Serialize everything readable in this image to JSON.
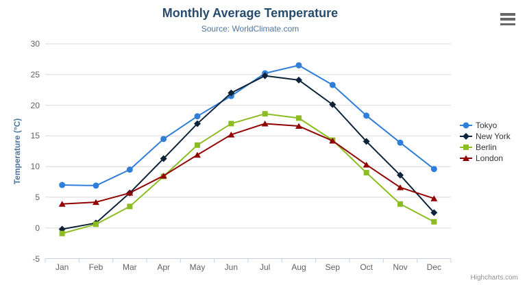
{
  "chart": {
    "title": "Monthly Average Temperature",
    "subtitle": "Source: WorldClimate.com",
    "credits": "Highcharts.com"
  },
  "chart_data": {
    "type": "line",
    "title": "Monthly Average Temperature",
    "subtitle": "Source: WorldClimate.com",
    "categories": [
      "Jan",
      "Feb",
      "Mar",
      "Apr",
      "May",
      "Jun",
      "Jul",
      "Aug",
      "Sep",
      "Oct",
      "Nov",
      "Dec"
    ],
    "xlabel": "",
    "ylabel": "Temperature (°C)",
    "ylim": [
      -5,
      30
    ],
    "yticks": [
      -5,
      0,
      5,
      10,
      15,
      20,
      25,
      30
    ],
    "grid": true,
    "legend_position": "right-middle",
    "series": [
      {
        "name": "Tokyo",
        "color": "#2f7ed8",
        "marker": "circle",
        "values": [
          7.0,
          6.9,
          9.5,
          14.5,
          18.2,
          21.5,
          25.2,
          26.5,
          23.3,
          18.3,
          13.9,
          9.6
        ]
      },
      {
        "name": "New York",
        "color": "#0d233a",
        "marker": "diamond",
        "values": [
          -0.2,
          0.8,
          5.7,
          11.3,
          17.0,
          22.0,
          24.8,
          24.1,
          20.1,
          14.1,
          8.6,
          2.5
        ]
      },
      {
        "name": "Berlin",
        "color": "#8bbc21",
        "marker": "square",
        "values": [
          -0.9,
          0.6,
          3.5,
          8.4,
          13.5,
          17.0,
          18.6,
          17.9,
          14.3,
          9.0,
          3.9,
          1.0
        ]
      },
      {
        "name": "London",
        "color": "#910000",
        "marker": "triangle",
        "values": [
          3.9,
          4.2,
          5.7,
          8.5,
          11.9,
          15.2,
          17.0,
          16.6,
          14.2,
          10.3,
          6.6,
          4.8
        ]
      }
    ],
    "colors": {
      "gridline": "#d8d8d8",
      "axis_line": "#c0d0e0",
      "axis_label": "#606060",
      "title": "#274b6d",
      "subtitle": "#4d759e",
      "legend_text": "#333333",
      "credits": "#909090"
    }
  }
}
